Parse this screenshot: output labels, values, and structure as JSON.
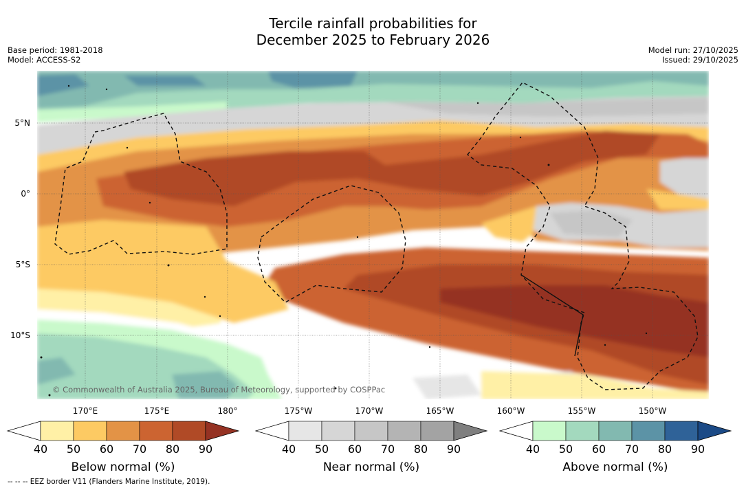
{
  "title": {
    "line1": "Tercile rainfall probabilities for",
    "line2": "December 2025 to February 2026"
  },
  "meta": {
    "base_period": "Base period: 1981-2018",
    "model": "Model: ACCESS-S2",
    "model_run": "Model run: 27/10/2025",
    "issued": "Issued: 29/10/2025"
  },
  "map": {
    "lat_labels": [
      "5°N",
      "0°",
      "5°S",
      "10°S"
    ],
    "lon_labels": [
      "170°E",
      "175°E",
      "180°",
      "175°W",
      "170°W",
      "165°W",
      "160°W",
      "155°W",
      "150°W"
    ],
    "copyright": "© Commonwealth of Australia 2025, Bureau of Meteorology, supported by COSPPac"
  },
  "legends": [
    {
      "name": "below",
      "label": "Below normal (%)",
      "ticks": [
        "40",
        "50",
        "60",
        "70",
        "80",
        "90"
      ],
      "colors": [
        "#ffffff",
        "#fff0a6",
        "#fdca63",
        "#e39346",
        "#cc6431",
        "#b04a26",
        "#953223"
      ]
    },
    {
      "name": "near",
      "label": "Near normal (%)",
      "ticks": [
        "40",
        "50",
        "60",
        "70",
        "80",
        "90"
      ],
      "colors": [
        "#ffffff",
        "#e6e6e6",
        "#d6d6d6",
        "#c6c6c6",
        "#b4b4b4",
        "#a3a3a3",
        "#7f7f7f"
      ]
    },
    {
      "name": "above",
      "label": "Above normal (%)",
      "ticks": [
        "40",
        "50",
        "60",
        "70",
        "80",
        "90"
      ],
      "colors": [
        "#ffffff",
        "#c9f9cb",
        "#a3d9be",
        "#82b9b0",
        "#5c93a6",
        "#2f6298",
        "#1b4a86"
      ]
    }
  ],
  "footnote": "--  --  -- EEZ border V11 (Flanders Marine Institute, 2019)."
}
